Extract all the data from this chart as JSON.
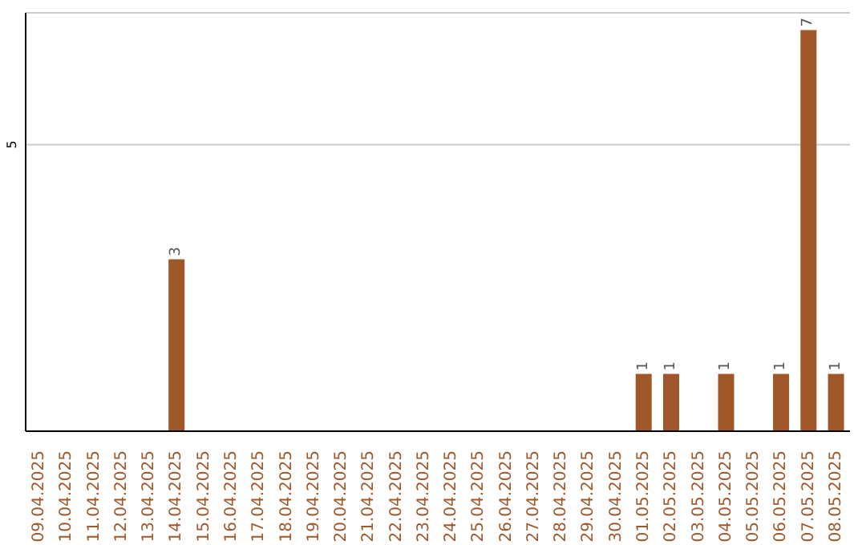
{
  "chart_data": {
    "type": "bar",
    "categories": [
      "09.04.2025",
      "10.04.2025",
      "11.04.2025",
      "12.04.2025",
      "13.04.2025",
      "14.04.2025",
      "15.04.2025",
      "16.04.2025",
      "17.04.2025",
      "18.04.2025",
      "19.04.2025",
      "20.04.2025",
      "21.04.2025",
      "22.04.2025",
      "23.04.2025",
      "24.04.2025",
      "25.04.2025",
      "26.04.2025",
      "27.04.2025",
      "28.04.2025",
      "29.04.2025",
      "30.04.2025",
      "01.05.2025",
      "02.05.2025",
      "03.05.2025",
      "04.05.2025",
      "05.05.2025",
      "06.05.2025",
      "07.05.2025",
      "08.05.2025"
    ],
    "values": [
      0,
      0,
      0,
      0,
      0,
      3,
      0,
      0,
      0,
      0,
      0,
      0,
      0,
      0,
      0,
      0,
      0,
      0,
      0,
      0,
      0,
      0,
      1,
      1,
      0,
      1,
      0,
      1,
      7,
      1
    ],
    "value_labels": [
      null,
      null,
      null,
      null,
      null,
      "3",
      null,
      null,
      null,
      null,
      null,
      null,
      null,
      null,
      null,
      null,
      null,
      null,
      null,
      null,
      null,
      null,
      "1",
      "1",
      null,
      "1",
      null,
      "1",
      "7",
      "1"
    ],
    "color": "#a0582a",
    "ylim": [
      0,
      7.3
    ],
    "yticks": [
      5
    ],
    "grid": "y"
  }
}
